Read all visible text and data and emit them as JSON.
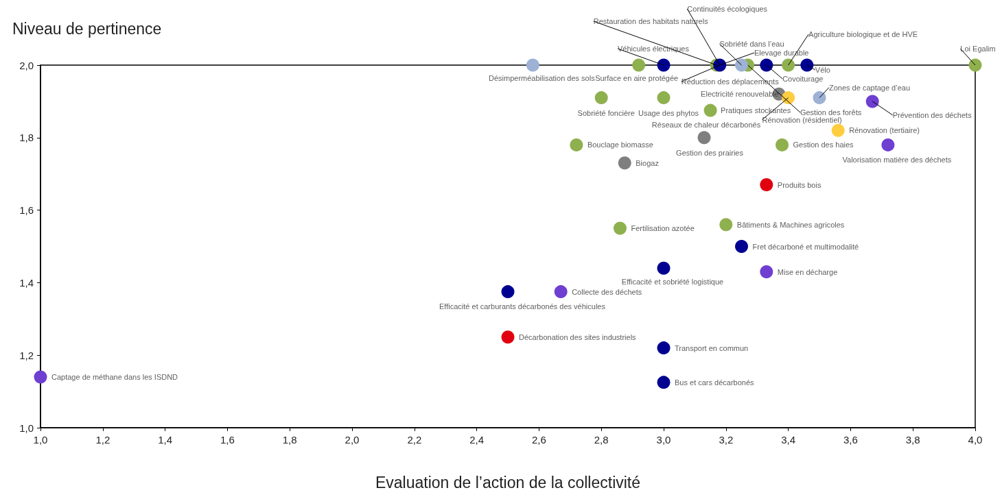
{
  "chart_data": {
    "type": "scatter",
    "xlabel": "Evaluation de l’action de la collectivité",
    "ylabel": "Niveau de pertinence",
    "xlim": [
      1.0,
      4.0
    ],
    "ylim": [
      1.0,
      2.0
    ],
    "xticks": [
      {
        "value": 1.0,
        "label": "1,0"
      },
      {
        "value": 1.2,
        "label": "1,2"
      },
      {
        "value": 1.4,
        "label": "1,4"
      },
      {
        "value": 1.6,
        "label": "1,6"
      },
      {
        "value": 1.8,
        "label": "1,8"
      },
      {
        "value": 2.0,
        "label": "2,0"
      },
      {
        "value": 2.2,
        "label": "2,2"
      },
      {
        "value": 2.4,
        "label": "2,4"
      },
      {
        "value": 2.6,
        "label": "2,6"
      },
      {
        "value": 2.8,
        "label": "2,8"
      },
      {
        "value": 3.0,
        "label": "3,0"
      },
      {
        "value": 3.2,
        "label": "3,2"
      },
      {
        "value": 3.4,
        "label": "3,4"
      },
      {
        "value": 3.6,
        "label": "3,6"
      },
      {
        "value": 3.8,
        "label": "3,8"
      },
      {
        "value": 4.0,
        "label": "4,0"
      }
    ],
    "yticks": [
      {
        "value": 1.0,
        "label": "1,0"
      },
      {
        "value": 1.2,
        "label": "1,2"
      },
      {
        "value": 1.4,
        "label": "1,4"
      },
      {
        "value": 1.6,
        "label": "1,6"
      },
      {
        "value": 1.8,
        "label": "1,8"
      },
      {
        "value": 2.0,
        "label": "2,0"
      }
    ],
    "marker": "circle",
    "series": [
      {
        "color": "#8fb04e",
        "x": [
          2.92,
          3.17,
          3.27,
          3.4,
          4.0,
          2.8,
          3.0,
          3.15,
          2.72,
          3.38,
          3.2,
          2.86
        ],
        "values": [
          2.0,
          2.0,
          2.0,
          2.0,
          2.0,
          1.91,
          1.91,
          1.875,
          1.78,
          1.78,
          1.56,
          1.55
        ]
      },
      {
        "color": "#9db2d4",
        "x": [
          2.58,
          3.25,
          3.5
        ],
        "values": [
          2.0,
          2.0,
          1.91
        ]
      },
      {
        "color": "#000091",
        "x": [
          3.0,
          3.18,
          3.33,
          3.46,
          3.25,
          3.0,
          2.5,
          3.0,
          3.0
        ],
        "values": [
          2.0,
          2.0,
          2.0,
          2.0,
          1.5,
          1.44,
          1.375,
          1.22,
          1.125
        ]
      },
      {
        "color": "#7f7f7f",
        "x": [
          3.37,
          3.13,
          2.875
        ],
        "values": [
          1.92,
          1.8,
          1.73
        ]
      },
      {
        "color": "#ffcd40",
        "x": [
          3.4,
          3.56
        ],
        "values": [
          1.91,
          1.82
        ]
      },
      {
        "color": "#6e3fd1",
        "x": [
          3.67,
          3.72,
          3.33,
          2.67,
          1.0
        ],
        "values": [
          1.9,
          1.78,
          1.43,
          1.375,
          1.14
        ]
      },
      {
        "color": "#e1000f",
        "x": [
          3.33,
          2.5
        ],
        "values": [
          1.67,
          1.25
        ]
      }
    ],
    "annotations": [
      {
        "text": "Désimperméabilisation des sols",
        "x": 2.58,
        "y": 2.0
      },
      {
        "text": "Surface en aire protégée",
        "x": 2.92,
        "y": 2.0
      },
      {
        "text": "Véhicules électriques",
        "x": 3.0,
        "y": 2.0
      },
      {
        "text": "Restauration des habitats naturels",
        "x": 3.17,
        "y": 2.0
      },
      {
        "text": "Continuités écologiques",
        "x": 3.18,
        "y": 2.0
      },
      {
        "text": "Elevage durable",
        "x": 3.18,
        "y": 2.0
      },
      {
        "text": "Réduction des déplacements",
        "x": 3.18,
        "y": 2.0
      },
      {
        "text": "Sobriété dans l’eau",
        "x": 3.25,
        "y": 2.0
      },
      {
        "text": "Gestion des forêts",
        "x": 3.27,
        "y": 2.0
      },
      {
        "text": "Covoiturage",
        "x": 3.33,
        "y": 2.0
      },
      {
        "text": "Agriculture biologique et de HVE",
        "x": 3.4,
        "y": 2.0
      },
      {
        "text": "Vélo",
        "x": 3.46,
        "y": 2.0
      },
      {
        "text": "Loi Egalim",
        "x": 4.0,
        "y": 2.0
      },
      {
        "text": "Electricité renouvelable",
        "x": 3.37,
        "y": 1.92
      },
      {
        "text": "Rénovation (résidentiel)",
        "x": 3.4,
        "y": 1.91
      },
      {
        "text": "Zones de captage d’eau",
        "x": 3.5,
        "y": 1.91
      },
      {
        "text": "Prévention des déchets",
        "x": 3.67,
        "y": 1.9
      },
      {
        "text": "Sobriété foncière",
        "x": 2.8,
        "y": 1.91
      },
      {
        "text": "Usage des phytos",
        "x": 3.0,
        "y": 1.91
      },
      {
        "text": "Pratiques stockantes",
        "x": 3.15,
        "y": 1.875
      },
      {
        "text": "Réseaux de chaleur décarbonés",
        "x": 3.13,
        "y": 1.8
      },
      {
        "text": "Gestion des prairies",
        "x": 3.13,
        "y": 1.8
      },
      {
        "text": "Rénovation (tertiaire)",
        "x": 3.56,
        "y": 1.82
      },
      {
        "text": "Bouclage biomasse",
        "x": 2.72,
        "y": 1.78
      },
      {
        "text": "Gestion des haies",
        "x": 3.38,
        "y": 1.78
      },
      {
        "text": "Valorisation matière des déchets",
        "x": 3.72,
        "y": 1.78
      },
      {
        "text": "Biogaz",
        "x": 2.875,
        "y": 1.73
      },
      {
        "text": "Produits bois",
        "x": 3.33,
        "y": 1.67
      },
      {
        "text": "Bâtiments & Machines agricoles",
        "x": 3.2,
        "y": 1.56
      },
      {
        "text": "Fertilisation azotée",
        "x": 2.86,
        "y": 1.55
      },
      {
        "text": "Fret décarboné et multimodalité",
        "x": 3.25,
        "y": 1.5
      },
      {
        "text": "Efficacité et sobriété logistique",
        "x": 3.0,
        "y": 1.44
      },
      {
        "text": "Mise en décharge",
        "x": 3.33,
        "y": 1.43
      },
      {
        "text": "Efficacité et carburants décarbonés des véhicules",
        "x": 2.5,
        "y": 1.375
      },
      {
        "text": "Collecte des déchets",
        "x": 2.67,
        "y": 1.375
      },
      {
        "text": "Décarbonation des sites industriels",
        "x": 2.5,
        "y": 1.25
      },
      {
        "text": "Transport en commun",
        "x": 3.0,
        "y": 1.22
      },
      {
        "text": "Bus et cars décarbonés",
        "x": 3.0,
        "y": 1.125
      },
      {
        "text": "Captage de méthane dans les ISDND",
        "x": 1.0,
        "y": 1.14
      }
    ]
  }
}
